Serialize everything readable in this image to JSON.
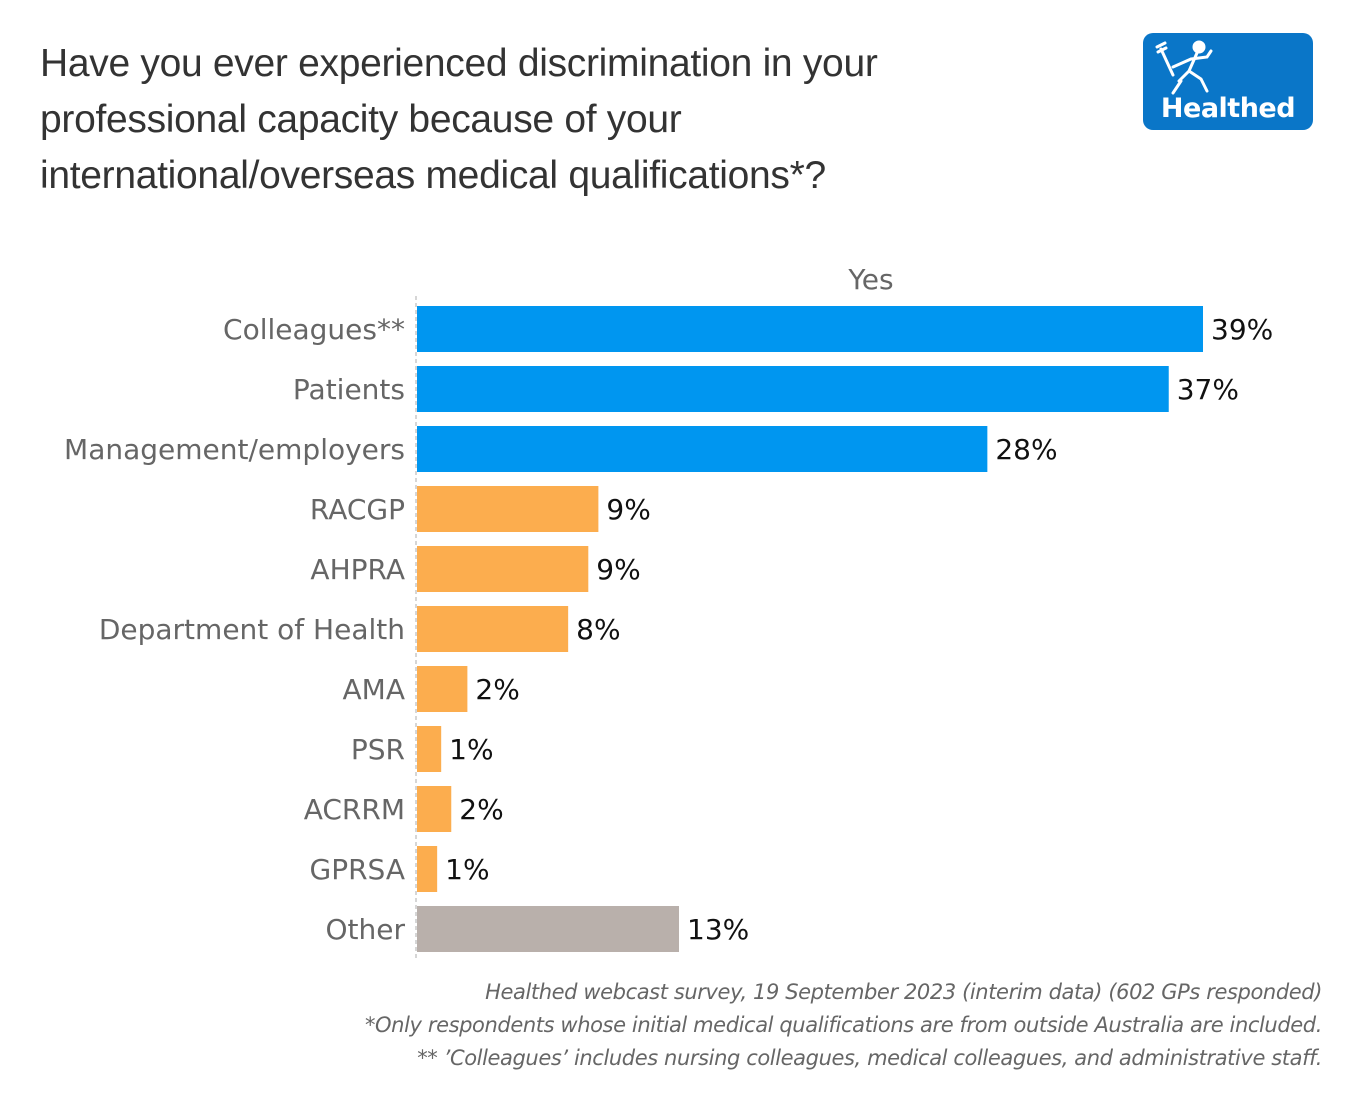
{
  "title": "Have you ever experienced discrimination in your professional capacity because of your international/overseas medical qualifications*?",
  "title_lines": [
    "Have you ever experienced discrimination in your",
    "professional capacity because of your",
    "international/overseas medical qualifications*?"
  ],
  "logo": {
    "text": "Healthed",
    "icon": "hermes-runner-icon",
    "color": "#0a76c8"
  },
  "footnotes": [
    "Healthed webcast survey, 19 September 2023 (interim data) (602 GPs responded)",
    "*Only respondents whose initial medical qualifications are from outside Australia are included.",
    "** ’Colleagues’ includes nursing colleagues, medical colleagues, and administrative staff."
  ],
  "colors": {
    "blue": "#0096f0",
    "orange": "#fcad4e",
    "grey": "#b9b0ab"
  },
  "chart_data": {
    "type": "bar",
    "orientation": "horizontal",
    "title": "Have you ever experienced discrimination in your professional capacity because of your international/overseas medical qualifications*?",
    "column_header": "Yes",
    "xlabel": "",
    "ylabel": "",
    "xlim": [
      0,
      39
    ],
    "grid": false,
    "categories": [
      "Colleagues**",
      "Patients",
      "Management/employers",
      "RACGP",
      "AHPRA",
      "Department of Health",
      "AMA",
      "PSR",
      "ACRRM",
      "GPRSA",
      "Other"
    ],
    "values": [
      39.0,
      37.3,
      28.3,
      9.0,
      8.5,
      7.5,
      2.5,
      1.2,
      1.7,
      1.0,
      13.0
    ],
    "labels": [
      "39%",
      "37%",
      "28%",
      "9%",
      "9%",
      "8%",
      "2%",
      "1%",
      "2%",
      "1%",
      "13%"
    ],
    "groups": [
      "blue",
      "blue",
      "blue",
      "orange",
      "orange",
      "orange",
      "orange",
      "orange",
      "orange",
      "orange",
      "grey"
    ]
  }
}
